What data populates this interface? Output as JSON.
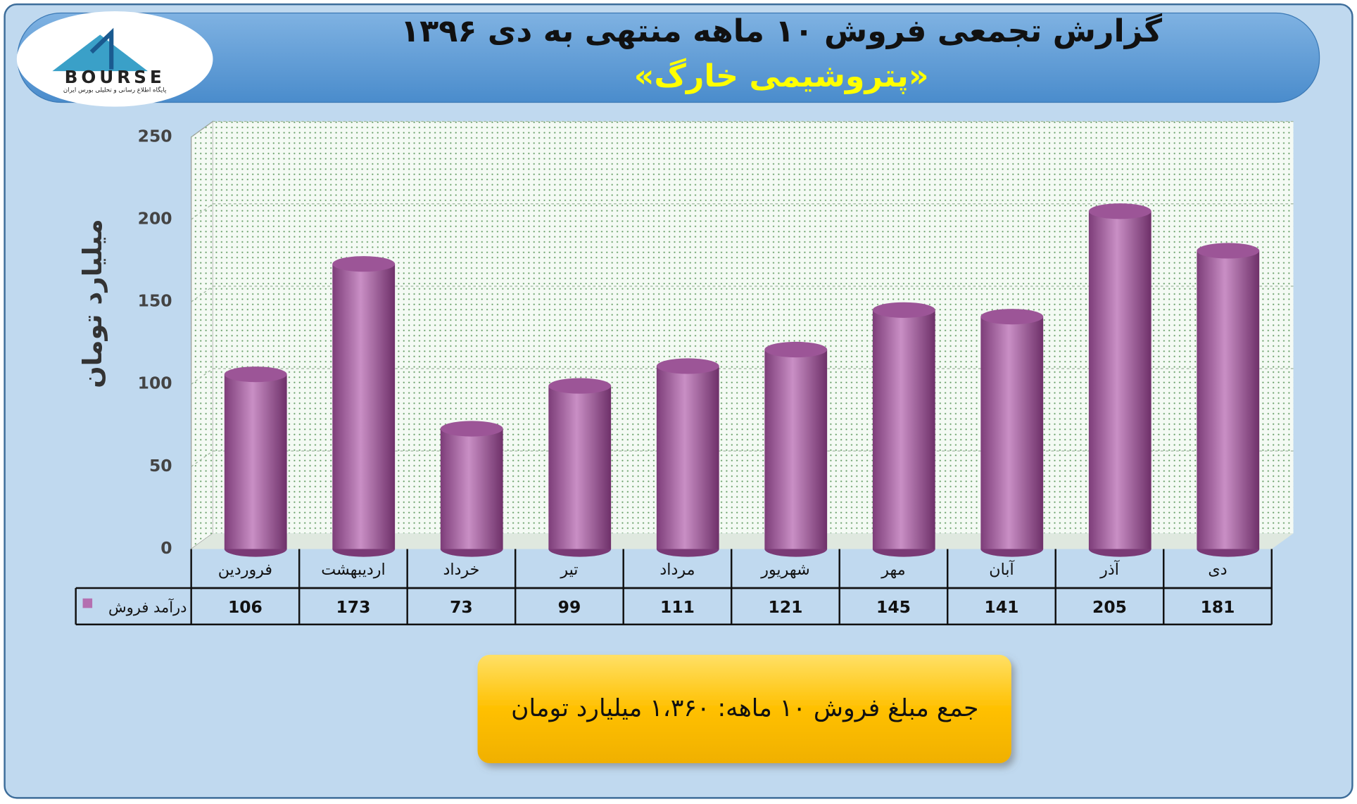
{
  "logo": {
    "text": "BOURSE",
    "caption": "پایگاه اطلاع رسانی و تحلیلی بورس ایران"
  },
  "chart_data": {
    "type": "bar",
    "title": "گزارش تجمعی فروش ۱۰ ماهه منتهی به دی ۱۳۹۶",
    "subtitle": "«پتروشیمی خارگ»",
    "y_label": "میلیارد تومان",
    "categories": [
      "فروردین",
      "اردیبهشت",
      "خرداد",
      "تیر",
      "مرداد",
      "شهریور",
      "مهر",
      "آبان",
      "آذر",
      "دی"
    ],
    "series": [
      {
        "name": "درآمد فروش",
        "color": "#b46fb0",
        "values": [
          106,
          173,
          73,
          99,
          111,
          121,
          145,
          141,
          205,
          181
        ]
      }
    ],
    "ylim": [
      0,
      250
    ],
    "yticks": [
      0,
      50,
      100,
      150,
      200,
      250
    ],
    "grid": true,
    "data_table": true
  },
  "summary": "جمع مبلغ فروش ۱۰ ماهه: ۱،۳۶۰ میلیارد تومان"
}
